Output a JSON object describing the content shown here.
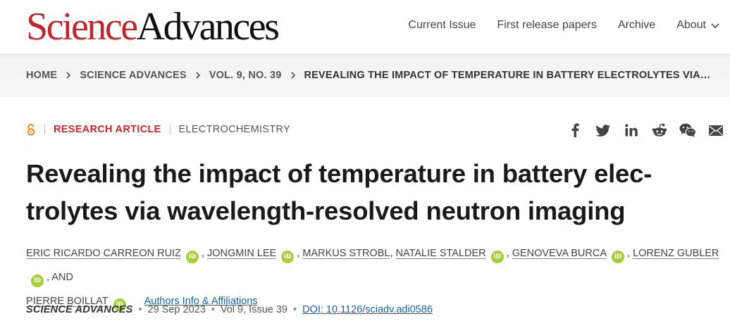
{
  "header": {
    "logo_science": "Science",
    "logo_advances": "Advances",
    "nav": [
      "Current Issue",
      "First release papers",
      "Archive",
      "About"
    ]
  },
  "breadcrumb": [
    "HOME",
    "SCIENCE ADVANCES",
    "VOL. 9, NO. 39",
    "REVEALING THE IMPACT OF TEMPERATURE IN BATTERY ELECTROLYTES VIA…"
  ],
  "article": {
    "access_icon": "open-access-icon",
    "type": "RESEARCH ARTICLE",
    "subject": "ELECTROCHEMISTRY",
    "title": "Revealing the impact of temperature in battery elec-trolytes via wavelength-resolved neutron imaging",
    "orcid_label": "iD",
    "authors": [
      "ERIC RICARDO CARREON RUIZ",
      "JONGMIN LEE",
      "MARKUS STROBL",
      "NATALIE STALDER",
      "GENOVEVA BURCA",
      "LORENZ GUBLER",
      "PIERRE BOILLAT"
    ],
    "comma": ",",
    "and": "AND",
    "affiliations_link": "Authors Info & Affiliations",
    "journal": "SCIENCE ADVANCES",
    "separator": "•",
    "date": "29 Sep 2023",
    "volume": "Vol 9, Issue 39",
    "doi": "DOI: 10.1126/sciadv.adi0586"
  },
  "share_icons": [
    "facebook-icon",
    "twitter-icon",
    "linkedin-icon",
    "reddit-icon",
    "wechat-icon",
    "email-icon"
  ],
  "colors": {
    "brand_red": "#c0272d",
    "link_blue": "#1a5fa8",
    "orcid_green": "#a6ce39"
  }
}
